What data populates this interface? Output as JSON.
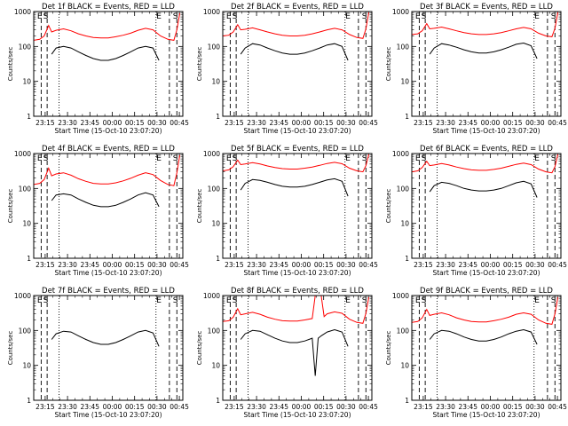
{
  "colors": {
    "events": "#000000",
    "lld": "#ff0000",
    "background": "#ffffff"
  },
  "common": {
    "xlabel": "Start Time (15-Oct-10 23:07:20)",
    "ylabel": "Counts/sec",
    "x_ticks": [
      "23:15",
      "23:30",
      "23:45",
      "00:00",
      "00:15",
      "00:30",
      "00:45"
    ],
    "x_tick_minutes": [
      7.67,
      22.67,
      37.67,
      52.67,
      67.67,
      82.67,
      97.67
    ],
    "y_ticks": [
      "1",
      "10",
      "100",
      "1000"
    ],
    "y_tick_values": [
      1,
      10,
      100,
      1000
    ],
    "marker_labels": {
      "E": "E",
      "S": "S"
    }
  },
  "chart_data": [
    {
      "type": "line",
      "title": "Det 1f BLACK = Events, RED = LLD",
      "xlim": [
        0,
        100
      ],
      "ylim": [
        1,
        1000
      ],
      "yscale": "log",
      "series": [
        {
          "name": "Events",
          "color": "#000000",
          "x": [
            12,
            15,
            20,
            25,
            30,
            35,
            40,
            45,
            50,
            55,
            60,
            65,
            70,
            75,
            80,
            84
          ],
          "y": [
            60,
            90,
            100,
            90,
            70,
            55,
            45,
            40,
            40,
            45,
            55,
            70,
            90,
            100,
            90,
            40
          ]
        },
        {
          "name": "LLD",
          "color": "#ff0000",
          "x": [
            0,
            4,
            7,
            10,
            12,
            15,
            20,
            25,
            30,
            35,
            40,
            45,
            50,
            55,
            60,
            65,
            70,
            75,
            80,
            85,
            90,
            94,
            96,
            98
          ],
          "y": [
            150,
            160,
            200,
            400,
            260,
            290,
            320,
            280,
            230,
            200,
            180,
            175,
            175,
            190,
            210,
            240,
            290,
            330,
            300,
            200,
            160,
            150,
            300,
            900
          ]
        }
      ],
      "dashed_x": [
        5,
        9,
        91,
        96
      ],
      "dotted_x": [
        17,
        82
      ],
      "marker_labels_x": {
        "E": [
          4,
          84
        ],
        "S": [
          8,
          95
        ]
      }
    },
    {
      "type": "line",
      "title": "Det 2f BLACK = Events, RED = LLD",
      "xlim": [
        0,
        100
      ],
      "ylim": [
        1,
        1000
      ],
      "yscale": "log",
      "series": [
        {
          "name": "Events",
          "color": "#000000",
          "x": [
            12,
            15,
            20,
            25,
            30,
            35,
            40,
            45,
            50,
            55,
            60,
            65,
            70,
            75,
            80,
            84
          ],
          "y": [
            60,
            90,
            120,
            110,
            90,
            75,
            65,
            60,
            60,
            65,
            75,
            90,
            110,
            120,
            100,
            40
          ]
        },
        {
          "name": "LLD",
          "color": "#ff0000",
          "x": [
            0,
            4,
            7,
            10,
            12,
            15,
            20,
            25,
            30,
            35,
            40,
            45,
            50,
            55,
            60,
            65,
            70,
            75,
            80,
            85,
            90,
            94,
            96,
            98
          ],
          "y": [
            200,
            210,
            260,
            420,
            300,
            310,
            340,
            300,
            260,
            230,
            210,
            200,
            200,
            210,
            230,
            260,
            300,
            330,
            300,
            220,
            180,
            170,
            320,
            950
          ]
        }
      ],
      "dashed_x": [
        5,
        9,
        91,
        96
      ],
      "dotted_x": [
        17,
        82
      ],
      "marker_labels_x": {
        "E": [
          4,
          84
        ],
        "S": [
          8,
          95
        ]
      }
    },
    {
      "type": "line",
      "title": "Det 3f BLACK = Events, RED = LLD",
      "xlim": [
        0,
        100
      ],
      "ylim": [
        1,
        1000
      ],
      "yscale": "log",
      "series": [
        {
          "name": "Events",
          "color": "#000000",
          "x": [
            12,
            15,
            20,
            25,
            30,
            35,
            40,
            45,
            50,
            55,
            60,
            65,
            70,
            75,
            80,
            84
          ],
          "y": [
            60,
            90,
            120,
            110,
            95,
            80,
            70,
            65,
            65,
            70,
            80,
            95,
            115,
            125,
            105,
            45
          ]
        },
        {
          "name": "LLD",
          "color": "#ff0000",
          "x": [
            0,
            4,
            7,
            10,
            12,
            15,
            20,
            25,
            30,
            35,
            40,
            45,
            50,
            55,
            60,
            65,
            70,
            75,
            80,
            85,
            90,
            94,
            96,
            98
          ],
          "y": [
            220,
            230,
            280,
            450,
            320,
            330,
            360,
            320,
            280,
            250,
            230,
            220,
            220,
            230,
            250,
            280,
            320,
            350,
            320,
            240,
            200,
            190,
            330,
            950
          ]
        }
      ],
      "dashed_x": [
        5,
        9,
        91,
        96
      ],
      "dotted_x": [
        17,
        82
      ],
      "marker_labels_x": {
        "E": [
          4,
          84
        ],
        "S": [
          8,
          95
        ]
      }
    },
    {
      "type": "line",
      "title": "Det 4f BLACK = Events, RED = LLD",
      "xlim": [
        0,
        100
      ],
      "ylim": [
        1,
        1000
      ],
      "yscale": "log",
      "series": [
        {
          "name": "Events",
          "color": "#000000",
          "x": [
            12,
            15,
            20,
            25,
            30,
            35,
            40,
            45,
            50,
            55,
            60,
            65,
            70,
            75,
            80,
            84
          ],
          "y": [
            45,
            65,
            70,
            65,
            50,
            40,
            33,
            30,
            30,
            33,
            40,
            50,
            65,
            75,
            65,
            30
          ]
        },
        {
          "name": "LLD",
          "color": "#ff0000",
          "x": [
            0,
            4,
            7,
            10,
            12,
            15,
            20,
            25,
            30,
            35,
            40,
            45,
            50,
            55,
            60,
            65,
            70,
            75,
            80,
            85,
            90,
            94,
            96,
            98
          ],
          "y": [
            130,
            140,
            180,
            380,
            230,
            260,
            280,
            240,
            190,
            160,
            140,
            135,
            135,
            145,
            165,
            195,
            240,
            280,
            250,
            170,
            130,
            120,
            280,
            900
          ]
        }
      ],
      "dashed_x": [
        5,
        9,
        91,
        96
      ],
      "dotted_x": [
        17,
        82
      ],
      "marker_labels_x": {
        "E": [
          4,
          84
        ],
        "S": [
          8,
          95
        ]
      }
    },
    {
      "type": "line",
      "title": "Det 5f BLACK = Events, RED = LLD",
      "xlim": [
        0,
        100
      ],
      "ylim": [
        1,
        1000
      ],
      "yscale": "log",
      "series": [
        {
          "name": "Events",
          "color": "#000000",
          "x": [
            12,
            15,
            20,
            25,
            30,
            35,
            40,
            45,
            50,
            55,
            60,
            65,
            70,
            75,
            80,
            84
          ],
          "y": [
            90,
            140,
            180,
            170,
            150,
            130,
            115,
            110,
            110,
            115,
            130,
            150,
            175,
            190,
            160,
            60
          ]
        },
        {
          "name": "LLD",
          "color": "#ff0000",
          "x": [
            0,
            4,
            7,
            10,
            12,
            15,
            20,
            25,
            30,
            35,
            40,
            45,
            50,
            55,
            60,
            65,
            70,
            75,
            80,
            85,
            90,
            94,
            96,
            98
          ],
          "y": [
            320,
            340,
            420,
            650,
            480,
            500,
            550,
            500,
            440,
            400,
            370,
            360,
            360,
            380,
            410,
            460,
            520,
            560,
            510,
            380,
            320,
            300,
            450,
            950
          ]
        }
      ],
      "dashed_x": [
        5,
        9,
        91,
        96
      ],
      "dotted_x": [
        17,
        82
      ],
      "marker_labels_x": {
        "E": [
          4,
          84
        ],
        "S": [
          8,
          95
        ]
      }
    },
    {
      "type": "line",
      "title": "Det 6f BLACK = Events, RED = LLD",
      "xlim": [
        0,
        100
      ],
      "ylim": [
        1,
        1000
      ],
      "yscale": "log",
      "series": [
        {
          "name": "Events",
          "color": "#000000",
          "x": [
            12,
            15,
            20,
            25,
            30,
            35,
            40,
            45,
            50,
            55,
            60,
            65,
            70,
            75,
            80,
            84
          ],
          "y": [
            80,
            120,
            150,
            140,
            120,
            100,
            90,
            85,
            85,
            90,
            100,
            120,
            145,
            160,
            135,
            55
          ]
        },
        {
          "name": "LLD",
          "color": "#ff0000",
          "x": [
            0,
            4,
            7,
            10,
            12,
            15,
            20,
            25,
            30,
            35,
            40,
            45,
            50,
            55,
            60,
            65,
            70,
            75,
            80,
            85,
            90,
            94,
            96,
            98
          ],
          "y": [
            300,
            320,
            400,
            600,
            450,
            470,
            520,
            470,
            410,
            370,
            340,
            330,
            330,
            350,
            380,
            430,
            490,
            530,
            480,
            360,
            300,
            280,
            420,
            950
          ]
        }
      ],
      "dashed_x": [
        5,
        9,
        91,
        96
      ],
      "dotted_x": [
        17,
        82
      ],
      "marker_labels_x": {
        "E": [
          4,
          84
        ],
        "S": [
          8,
          95
        ]
      }
    },
    {
      "type": "line",
      "title": "Det 7f BLACK = Events, RED = LLD",
      "xlim": [
        0,
        100
      ],
      "ylim": [
        1,
        1000
      ],
      "yscale": "log",
      "series": [
        {
          "name": "Events",
          "color": "#000000",
          "x": [
            12,
            15,
            20,
            25,
            30,
            35,
            40,
            45,
            50,
            55,
            60,
            65,
            70,
            75,
            80,
            84
          ],
          "y": [
            55,
            80,
            95,
            90,
            70,
            55,
            45,
            40,
            40,
            45,
            55,
            70,
            90,
            100,
            85,
            35
          ]
        }
      ],
      "dashed_x": [
        5,
        9,
        91,
        96
      ],
      "dotted_x": [
        17,
        82
      ],
      "marker_labels_x": {
        "E": [
          4,
          84
        ],
        "S": [
          8,
          95
        ]
      }
    },
    {
      "type": "line",
      "title": "Det 8f BLACK = Events, RED = LLD",
      "xlim": [
        0,
        100
      ],
      "ylim": [
        1,
        1000
      ],
      "yscale": "log",
      "series": [
        {
          "name": "Events",
          "color": "#000000",
          "x": [
            12,
            15,
            20,
            25,
            30,
            35,
            40,
            45,
            50,
            55,
            60,
            62,
            64,
            66,
            70,
            75,
            80,
            84
          ],
          "y": [
            55,
            80,
            100,
            95,
            75,
            60,
            50,
            45,
            45,
            50,
            60,
            5,
            60,
            70,
            90,
            105,
            90,
            35
          ]
        },
        {
          "name": "LLD",
          "color": "#ff0000",
          "x": [
            0,
            4,
            7,
            10,
            12,
            15,
            20,
            25,
            30,
            35,
            40,
            45,
            50,
            55,
            60,
            62,
            66,
            68,
            70,
            75,
            80,
            85,
            90,
            94,
            96,
            98
          ],
          "y": [
            180,
            190,
            240,
            420,
            280,
            300,
            330,
            290,
            240,
            210,
            190,
            185,
            185,
            200,
            220,
            1000,
            1000,
            250,
            300,
            340,
            310,
            210,
            170,
            160,
            310,
            900
          ]
        }
      ],
      "dashed_x": [
        5,
        9,
        91,
        96
      ],
      "dotted_x": [
        17,
        82
      ],
      "marker_labels_x": {
        "E": [
          4,
          84
        ],
        "S": [
          8,
          95
        ]
      }
    },
    {
      "type": "line",
      "title": "Det 9f BLACK = Events, RED = LLD",
      "xlim": [
        0,
        100
      ],
      "ylim": [
        1,
        1000
      ],
      "yscale": "log",
      "series": [
        {
          "name": "Events",
          "color": "#000000",
          "x": [
            12,
            15,
            20,
            25,
            30,
            35,
            40,
            45,
            50,
            55,
            60,
            65,
            70,
            75,
            80,
            84
          ],
          "y": [
            55,
            80,
            100,
            95,
            80,
            65,
            55,
            50,
            50,
            55,
            65,
            80,
            95,
            105,
            90,
            40
          ]
        },
        {
          "name": "LLD",
          "color": "#ff0000",
          "x": [
            0,
            4,
            7,
            10,
            12,
            15,
            20,
            25,
            30,
            35,
            40,
            45,
            50,
            55,
            60,
            65,
            70,
            75,
            80,
            85,
            90,
            94,
            96,
            98
          ],
          "y": [
            170,
            180,
            230,
            400,
            270,
            290,
            320,
            280,
            230,
            200,
            180,
            175,
            175,
            190,
            210,
            240,
            290,
            320,
            290,
            200,
            160,
            150,
            300,
            900
          ]
        }
      ],
      "dashed_x": [
        5,
        9,
        91,
        96
      ],
      "dotted_x": [
        17,
        82
      ],
      "marker_labels_x": {
        "E": [
          4,
          84
        ],
        "S": [
          8,
          95
        ]
      }
    }
  ]
}
